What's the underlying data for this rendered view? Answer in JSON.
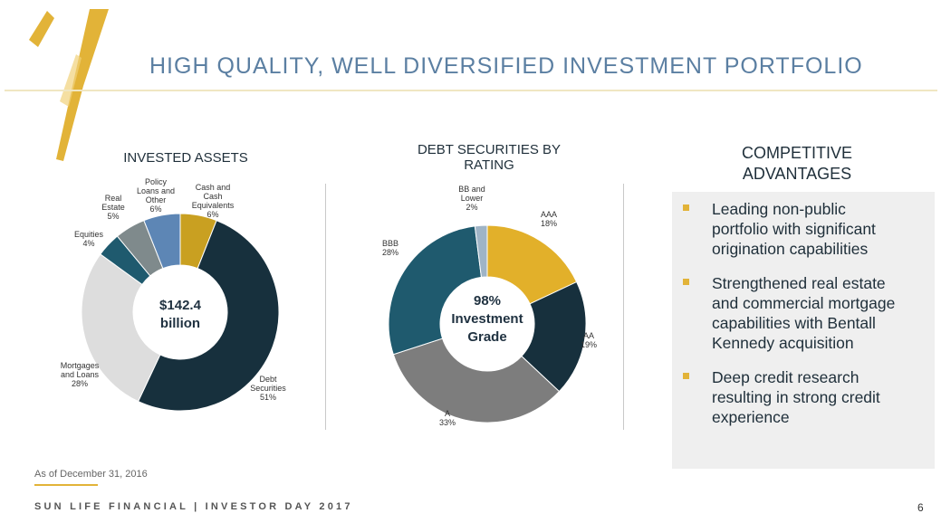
{
  "title": "HIGH QUALITY, WELL DIVERSIFIED INVESTMENT PORTFOLIO",
  "colors": {
    "accent": "#e2b338",
    "title": "#5b7fa2",
    "dark_navy": "#17303d",
    "teal": "#1f5a6e",
    "light_gray": "#dddddd",
    "mid_gray": "#7f8a8c",
    "blue": "#5d86b5",
    "gold": "#c9a021",
    "gray": "#7d7d7d",
    "pale_blue": "#9fb4c6"
  },
  "chart_data": [
    {
      "type": "pie",
      "title": "INVESTED ASSETS",
      "center_label": [
        "$142.4",
        "billion"
      ],
      "slices": [
        {
          "name": [
            "Cash and",
            "Cash",
            "Equivalents"
          ],
          "value": 6,
          "pct_label": "6%",
          "color": "#c9a021"
        },
        {
          "name": [
            "Debt",
            "Securities"
          ],
          "value": 51,
          "pct_label": "51%",
          "color": "#17303d"
        },
        {
          "name": [
            "Mortgages",
            "and Loans"
          ],
          "value": 28,
          "pct_label": "28%",
          "color": "#dddddd"
        },
        {
          "name": [
            "Equities"
          ],
          "value": 4,
          "pct_label": "4%",
          "color": "#1f5a6e"
        },
        {
          "name": [
            "Real",
            "Estate"
          ],
          "value": 5,
          "pct_label": "5%",
          "color": "#7f8a8c"
        },
        {
          "name": [
            "Policy",
            "Loans and",
            "Other"
          ],
          "value": 6,
          "pct_label": "6%",
          "color": "#5d86b5"
        }
      ]
    },
    {
      "type": "pie",
      "title": [
        "DEBT SECURITIES BY",
        "RATING"
      ],
      "center_label": [
        "98%",
        "Investment",
        "Grade"
      ],
      "slices": [
        {
          "name": [
            "AAA"
          ],
          "value": 18,
          "pct_label": "18%",
          "color": "#e2b02a"
        },
        {
          "name": [
            "AA"
          ],
          "value": 19,
          "pct_label": "19%",
          "color": "#17303d"
        },
        {
          "name": [
            "A"
          ],
          "value": 33,
          "pct_label": "33%",
          "color": "#7d7d7d"
        },
        {
          "name": [
            "BBB"
          ],
          "value": 28,
          "pct_label": "28%",
          "color": "#1f5a6e"
        },
        {
          "name": [
            "BB and",
            "Lower"
          ],
          "value": 2,
          "pct_label": "2%",
          "color": "#9fb4c6"
        }
      ]
    }
  ],
  "advantages": {
    "heading": [
      "COMPETITIVE",
      "ADVANTAGES"
    ],
    "bullets": [
      [
        "Leading non-public",
        "portfolio with significant",
        "origination capabilities"
      ],
      [
        "Strengthened real estate",
        "and commercial mortgage",
        "capabilities with Bentall",
        "Kennedy acquisition"
      ],
      [
        "Deep credit research",
        "resulting in strong credit",
        "experience"
      ]
    ]
  },
  "as_of": "As of December 31, 2016",
  "footer": "SUN LIFE FINANCIAL  |  INVESTOR DAY 2017",
  "page_number": "6"
}
